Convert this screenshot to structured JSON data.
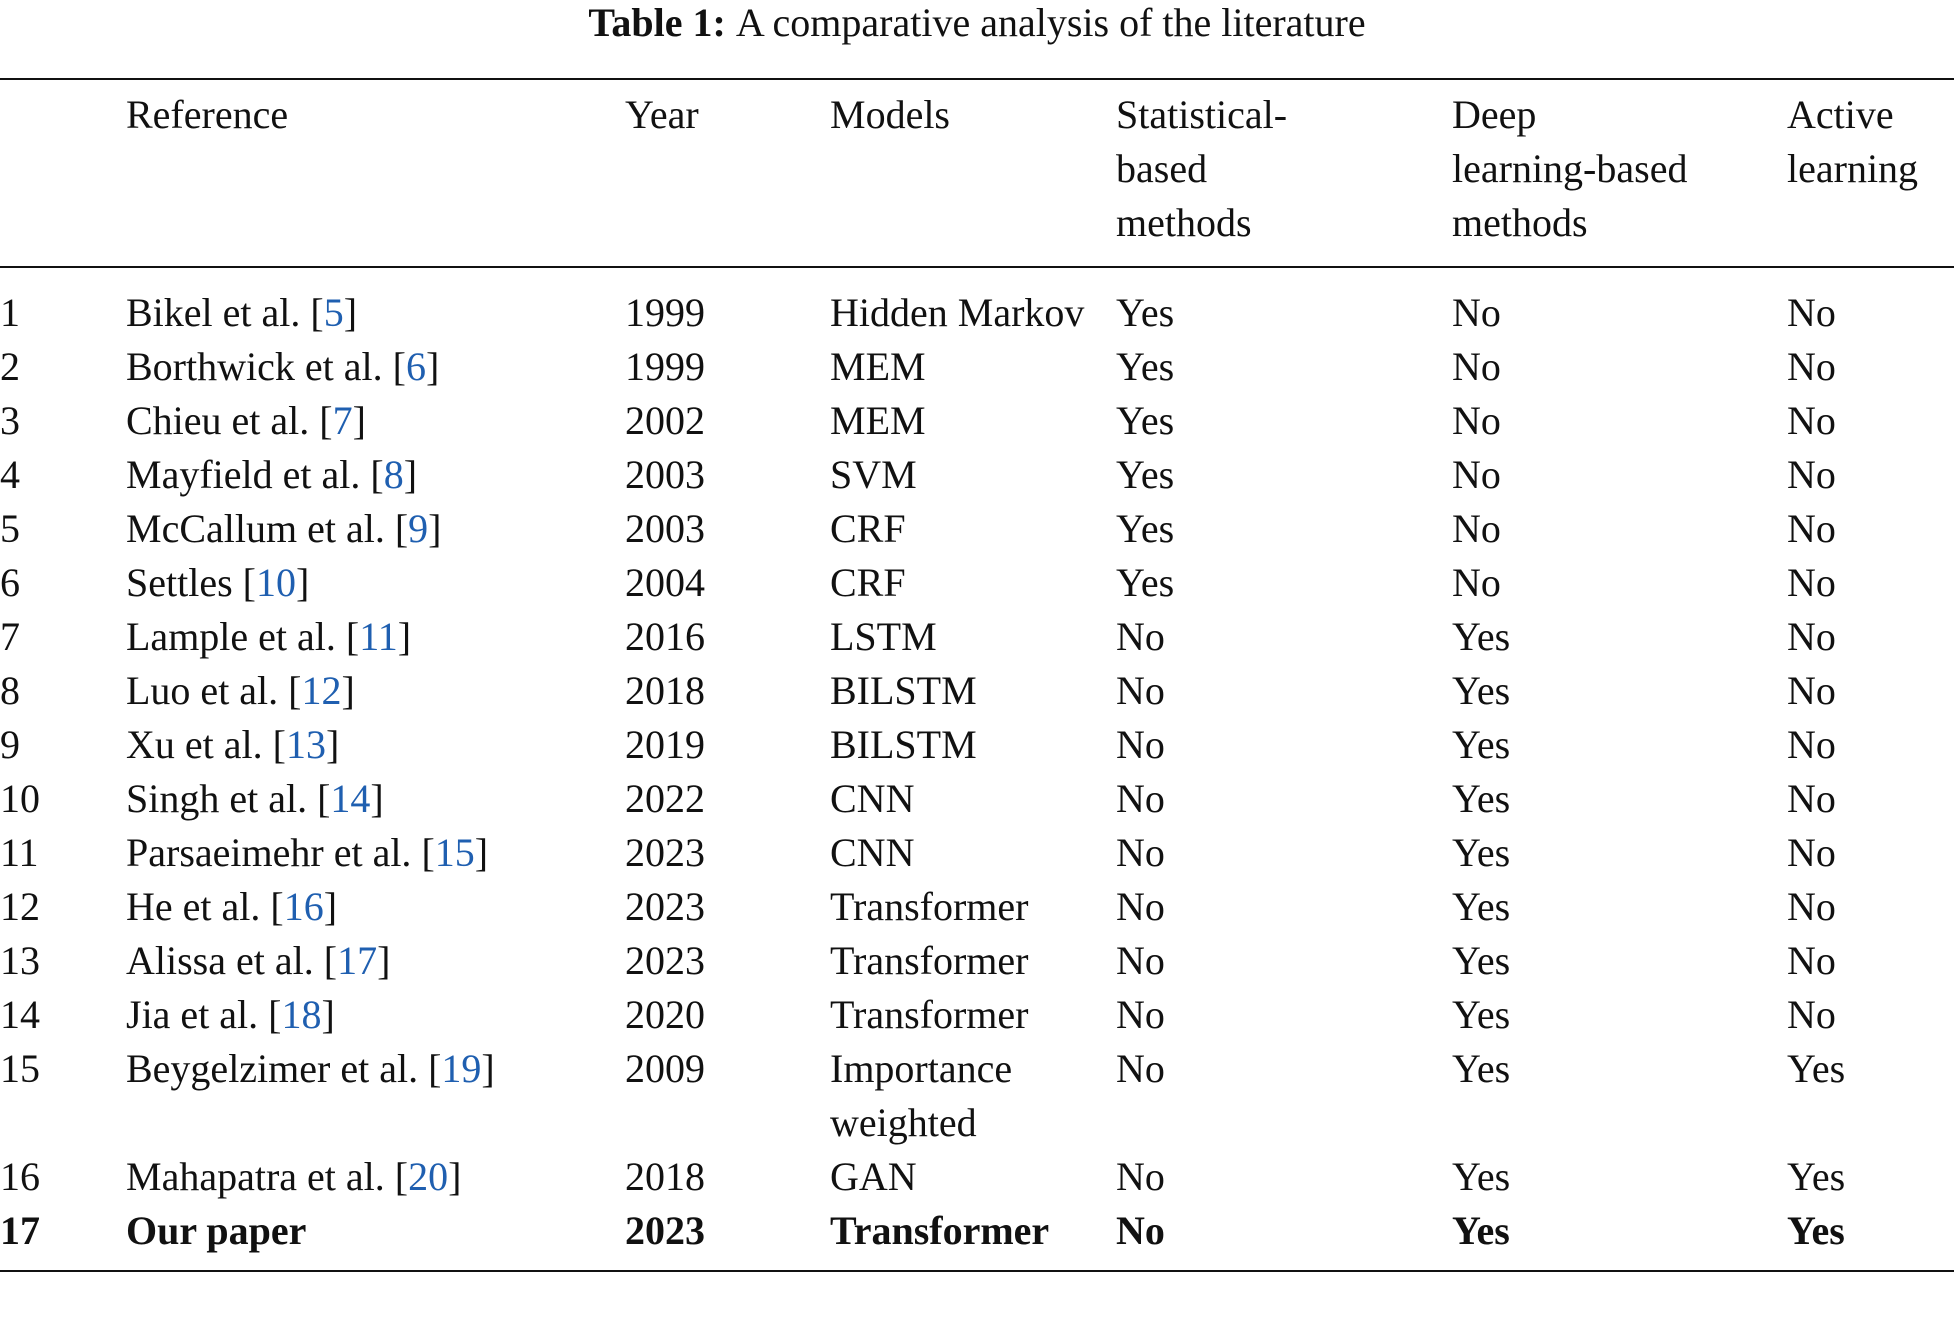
{
  "caption": {
    "label": "Table 1:",
    "text": "A comparative analysis of the literature"
  },
  "table": {
    "headers": [
      [],
      [
        "Reference"
      ],
      [
        "Year"
      ],
      [
        "Models"
      ],
      [
        "Statistical-",
        "based",
        "methods"
      ],
      [
        "Deep",
        "learning-based",
        "methods"
      ],
      [
        "Active",
        "learning"
      ]
    ],
    "rows": [
      {
        "no": "1",
        "author": "Bikel et al.",
        "cite": "5",
        "year": "1999",
        "model": "Hidden Markov",
        "statistical": "Yes",
        "deep": "No",
        "active": "No"
      },
      {
        "no": "2",
        "author": "Borthwick et al.",
        "cite": "6",
        "year": "1999",
        "model": "MEM",
        "statistical": "Yes",
        "deep": "No",
        "active": "No"
      },
      {
        "no": "3",
        "author": "Chieu et al.",
        "cite": "7",
        "year": "2002",
        "model": "MEM",
        "statistical": "Yes",
        "deep": "No",
        "active": "No"
      },
      {
        "no": "4",
        "author": "Mayfield et al.",
        "cite": "8",
        "year": "2003",
        "model": "SVM",
        "statistical": "Yes",
        "deep": "No",
        "active": "No"
      },
      {
        "no": "5",
        "author": "McCallum et al.",
        "cite": "9",
        "year": "2003",
        "model": "CRF",
        "statistical": "Yes",
        "deep": "No",
        "active": "No"
      },
      {
        "no": "6",
        "author": "Settles",
        "cite": "10",
        "year": "2004",
        "model": "CRF",
        "statistical": "Yes",
        "deep": "No",
        "active": "No"
      },
      {
        "no": "7",
        "author": "Lample et al.",
        "cite": "11",
        "year": "2016",
        "model": "LSTM",
        "statistical": "No",
        "deep": "Yes",
        "active": "No"
      },
      {
        "no": "8",
        "author": "Luo et al.",
        "cite": "12",
        "year": "2018",
        "model": "BILSTM",
        "statistical": "No",
        "deep": "Yes",
        "active": "No"
      },
      {
        "no": "9",
        "author": "Xu et al.",
        "cite": "13",
        "year": "2019",
        "model": "BILSTM",
        "statistical": "No",
        "deep": "Yes",
        "active": "No"
      },
      {
        "no": "10",
        "author": "Singh et al.",
        "cite": "14",
        "year": "2022",
        "model": "CNN",
        "statistical": "No",
        "deep": "Yes",
        "active": "No"
      },
      {
        "no": "11",
        "author": "Parsaeimehr et al.",
        "cite": "15",
        "year": "2023",
        "model": "CNN",
        "statistical": "No",
        "deep": "Yes",
        "active": "No"
      },
      {
        "no": "12",
        "author": "He et al.",
        "cite": "16",
        "year": "2023",
        "model": "Transformer",
        "statistical": "No",
        "deep": "Yes",
        "active": "No"
      },
      {
        "no": "13",
        "author": "Alissa et al.",
        "cite": "17",
        "year": "2023",
        "model": "Transformer",
        "statistical": "No",
        "deep": "Yes",
        "active": "No"
      },
      {
        "no": "14",
        "author": "Jia et al.",
        "cite": "18",
        "year": "2020",
        "model": "Transformer",
        "statistical": "No",
        "deep": "Yes",
        "active": "No"
      },
      {
        "no": "15",
        "author": "Beygelzimer et al.",
        "cite": "19",
        "year": "2009",
        "model": "Importance weighted",
        "statistical": "No",
        "deep": "Yes",
        "active": "Yes"
      },
      {
        "no": "16",
        "author": "Mahapatra et al.",
        "cite": "20",
        "year": "2018",
        "model": "GAN",
        "statistical": "No",
        "deep": "Yes",
        "active": "Yes"
      },
      {
        "no": "17",
        "author": "Our paper",
        "year": "2023",
        "model": "Transformer",
        "statistical": "No",
        "deep": "Yes",
        "active": "Yes"
      }
    ]
  }
}
